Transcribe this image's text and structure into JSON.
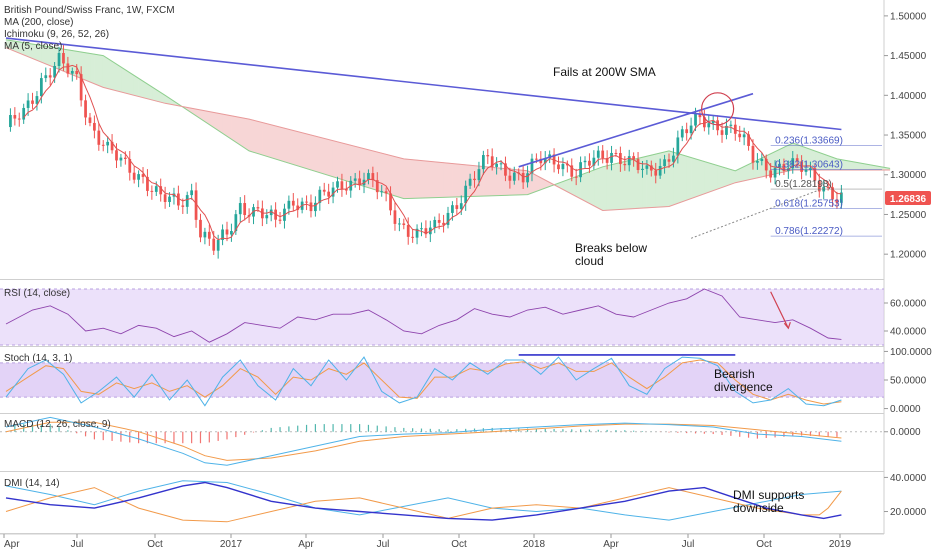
{
  "chart_data": {
    "type": "candlestick",
    "title": "British Pound/Swiss Franc, 1W, FXCM",
    "indicators_top": [
      "MA (200, close)",
      "Ichimoku (9, 26, 52, 26)",
      "MA (5, close)"
    ],
    "x_ticks": [
      "Apr",
      "Jul",
      "Oct",
      "2017",
      "Apr",
      "Jul",
      "Oct",
      "2018",
      "Apr",
      "Jul",
      "Oct",
      "2019"
    ],
    "price_ticks": [
      "1.50000",
      "1.45000",
      "1.40000",
      "1.35000",
      "1.30000",
      "1.25000",
      "1.20000"
    ],
    "price_ylim": [
      1.17,
      1.52
    ],
    "last_price": "1.26836",
    "close_path": [
      [
        0,
        1.355
      ],
      [
        4,
        1.38
      ],
      [
        8,
        1.42
      ],
      [
        12,
        1.44
      ],
      [
        16,
        1.42
      ],
      [
        19,
        1.365
      ],
      [
        23,
        1.33
      ],
      [
        27,
        1.31
      ],
      [
        31,
        1.298
      ],
      [
        35,
        1.27
      ],
      [
        39,
        1.262
      ],
      [
        42,
        1.28
      ],
      [
        44,
        1.23
      ],
      [
        47,
        1.208
      ],
      [
        50,
        1.222
      ],
      [
        53,
        1.262
      ],
      [
        57,
        1.255
      ],
      [
        61,
        1.238
      ],
      [
        65,
        1.27
      ],
      [
        69,
        1.262
      ],
      [
        73,
        1.275
      ],
      [
        77,
        1.292
      ],
      [
        81,
        1.298
      ],
      [
        85,
        1.274
      ],
      [
        89,
        1.24
      ],
      [
        93,
        1.225
      ],
      [
        97,
        1.23
      ],
      [
        101,
        1.26
      ],
      [
        105,
        1.29
      ],
      [
        109,
        1.318
      ],
      [
        113,
        1.308
      ],
      [
        117,
        1.296
      ],
      [
        121,
        1.318
      ],
      [
        125,
        1.32
      ],
      [
        129,
        1.3
      ],
      [
        133,
        1.318
      ],
      [
        137,
        1.33
      ],
      [
        141,
        1.315
      ],
      [
        145,
        1.3
      ],
      [
        149,
        1.318
      ],
      [
        153,
        1.35
      ],
      [
        157,
        1.368
      ],
      [
        161,
        1.365
      ],
      [
        165,
        1.355
      ],
      [
        169,
        1.32
      ],
      [
        173,
        1.31
      ],
      [
        177,
        1.31
      ],
      [
        181,
        1.305
      ],
      [
        185,
        1.288
      ],
      [
        188,
        1.27
      ],
      [
        189,
        1.268
      ]
    ],
    "ma200": [
      [
        0,
        1.472
      ],
      [
        189,
        1.357
      ]
    ],
    "ma5_offset": 0.006,
    "cloud_a": [
      [
        0,
        1.47
      ],
      [
        22,
        1.45
      ],
      [
        36,
        1.4
      ],
      [
        55,
        1.33
      ],
      [
        90,
        1.27
      ],
      [
        118,
        1.275
      ],
      [
        135,
        1.31
      ],
      [
        150,
        1.33
      ],
      [
        165,
        1.305
      ],
      [
        178,
        1.34
      ],
      [
        188,
        1.32
      ],
      [
        200,
        1.308
      ]
    ],
    "cloud_b": [
      [
        0,
        1.46
      ],
      [
        22,
        1.41
      ],
      [
        36,
        1.39
      ],
      [
        55,
        1.37
      ],
      [
        90,
        1.32
      ],
      [
        118,
        1.305
      ],
      [
        135,
        1.255
      ],
      [
        150,
        1.26
      ],
      [
        165,
        1.29
      ],
      [
        178,
        1.306
      ],
      [
        188,
        1.306
      ],
      [
        200,
        1.306
      ]
    ],
    "fib_levels": [
      {
        "label": "0.236(1.33669)",
        "value": 1.33669,
        "color": "#4a5bc4"
      },
      {
        "label": "0.382(1.30643)",
        "value": 1.30643,
        "color": "#4a5bc4"
      },
      {
        "label": "0.5(1.28198)",
        "value": 1.28198,
        "color": "#555555"
      },
      {
        "label": "0.618(1.25753)",
        "value": 1.25753,
        "color": "#4a5bc4"
      },
      {
        "label": "0.786(1.22272)",
        "value": 1.22272,
        "color": "#4a5bc4"
      }
    ],
    "trendline": [
      [
        116,
        1.31
      ],
      [
        169,
        1.402
      ]
    ],
    "circle_center": [
      161,
      1.383
    ],
    "annotations": {
      "fails": "Fails at 200W SMA",
      "breaks_line1": "Breaks below",
      "breaks_line2": "cloud",
      "bearish_line1": "Bearish",
      "bearish_line2": "divergence",
      "dmi_line1": "DMI supports",
      "dmi_line2": "downside"
    },
    "rsi": {
      "label": "RSI (14, close)",
      "ticks": [
        "60.0000",
        "40.0000"
      ],
      "ylim": [
        30,
        75
      ],
      "band": [
        30,
        70
      ],
      "path": [
        [
          0,
          45
        ],
        [
          6,
          55
        ],
        [
          10,
          58
        ],
        [
          14,
          52
        ],
        [
          18,
          40
        ],
        [
          22,
          42
        ],
        [
          26,
          38
        ],
        [
          30,
          44
        ],
        [
          34,
          42
        ],
        [
          38,
          36
        ],
        [
          42,
          40
        ],
        [
          46,
          32
        ],
        [
          50,
          38
        ],
        [
          54,
          46
        ],
        [
          58,
          44
        ],
        [
          62,
          42
        ],
        [
          66,
          50
        ],
        [
          70,
          48
        ],
        [
          74,
          52
        ],
        [
          78,
          52
        ],
        [
          82,
          55
        ],
        [
          86,
          48
        ],
        [
          90,
          40
        ],
        [
          94,
          38
        ],
        [
          98,
          44
        ],
        [
          102,
          48
        ],
        [
          106,
          56
        ],
        [
          110,
          52
        ],
        [
          114,
          50
        ],
        [
          118,
          55
        ],
        [
          122,
          57
        ],
        [
          126,
          52
        ],
        [
          130,
          55
        ],
        [
          134,
          58
        ],
        [
          138,
          52
        ],
        [
          142,
          50
        ],
        [
          146,
          55
        ],
        [
          150,
          60
        ],
        [
          154,
          63
        ],
        [
          158,
          70
        ],
        [
          162,
          65
        ],
        [
          166,
          50
        ],
        [
          170,
          48
        ],
        [
          174,
          46
        ],
        [
          178,
          48
        ],
        [
          182,
          42
        ],
        [
          186,
          35
        ],
        [
          189,
          34
        ]
      ]
    },
    "stoch": {
      "label": "Stoch (14, 3, 1)",
      "ticks": [
        "100.0000",
        "50.0000",
        "0.0000"
      ],
      "ylim": [
        0,
        100
      ],
      "band": [
        20,
        80
      ],
      "k_path": [
        [
          0,
          20
        ],
        [
          5,
          70
        ],
        [
          9,
          85
        ],
        [
          13,
          60
        ],
        [
          17,
          10
        ],
        [
          21,
          30
        ],
        [
          25,
          55
        ],
        [
          29,
          20
        ],
        [
          33,
          60
        ],
        [
          37,
          15
        ],
        [
          41,
          50
        ],
        [
          45,
          5
        ],
        [
          49,
          55
        ],
        [
          53,
          85
        ],
        [
          57,
          40
        ],
        [
          61,
          15
        ],
        [
          65,
          70
        ],
        [
          69,
          40
        ],
        [
          73,
          85
        ],
        [
          77,
          50
        ],
        [
          81,
          90
        ],
        [
          85,
          30
        ],
        [
          89,
          10
        ],
        [
          93,
          20
        ],
        [
          97,
          70
        ],
        [
          101,
          50
        ],
        [
          105,
          80
        ],
        [
          109,
          60
        ],
        [
          113,
          85
        ],
        [
          117,
          85
        ],
        [
          121,
          60
        ],
        [
          125,
          90
        ],
        [
          129,
          50
        ],
        [
          133,
          70
        ],
        [
          137,
          88
        ],
        [
          141,
          40
        ],
        [
          145,
          25
        ],
        [
          149,
          70
        ],
        [
          153,
          90
        ],
        [
          157,
          88
        ],
        [
          161,
          75
        ],
        [
          165,
          30
        ],
        [
          169,
          10
        ],
        [
          173,
          15
        ],
        [
          177,
          35
        ],
        [
          181,
          8
        ],
        [
          185,
          5
        ],
        [
          189,
          15
        ]
      ],
      "d_path": [
        [
          0,
          30
        ],
        [
          5,
          55
        ],
        [
          9,
          75
        ],
        [
          13,
          70
        ],
        [
          17,
          30
        ],
        [
          21,
          25
        ],
        [
          25,
          45
        ],
        [
          29,
          35
        ],
        [
          33,
          45
        ],
        [
          37,
          30
        ],
        [
          41,
          40
        ],
        [
          45,
          20
        ],
        [
          49,
          40
        ],
        [
          53,
          70
        ],
        [
          57,
          55
        ],
        [
          61,
          25
        ],
        [
          65,
          55
        ],
        [
          69,
          50
        ],
        [
          73,
          70
        ],
        [
          77,
          60
        ],
        [
          81,
          80
        ],
        [
          85,
          50
        ],
        [
          89,
          20
        ],
        [
          93,
          18
        ],
        [
          97,
          55
        ],
        [
          101,
          55
        ],
        [
          105,
          70
        ],
        [
          109,
          65
        ],
        [
          113,
          78
        ],
        [
          117,
          82
        ],
        [
          121,
          70
        ],
        [
          125,
          80
        ],
        [
          129,
          65
        ],
        [
          133,
          65
        ],
        [
          137,
          80
        ],
        [
          141,
          55
        ],
        [
          145,
          35
        ],
        [
          149,
          55
        ],
        [
          153,
          80
        ],
        [
          157,
          85
        ],
        [
          161,
          80
        ],
        [
          165,
          50
        ],
        [
          169,
          25
        ],
        [
          173,
          15
        ],
        [
          177,
          25
        ],
        [
          181,
          15
        ],
        [
          185,
          8
        ],
        [
          189,
          12
        ]
      ],
      "hline": [
        [
          116,
          94
        ],
        [
          165,
          94
        ]
      ]
    },
    "macd": {
      "label": "MACD (12, 26, close, 9)",
      "ticks": [
        "0.0000"
      ],
      "ylim": [
        -0.08,
        0.035
      ],
      "macd_path": [
        [
          0,
          0.01
        ],
        [
          10,
          0.03
        ],
        [
          20,
          0.01
        ],
        [
          30,
          -0.015
        ],
        [
          40,
          -0.045
        ],
        [
          45,
          -0.065
        ],
        [
          50,
          -0.07
        ],
        [
          60,
          -0.05
        ],
        [
          70,
          -0.03
        ],
        [
          80,
          -0.01
        ],
        [
          90,
          -0.005
        ],
        [
          100,
          -0.002
        ],
        [
          110,
          0.005
        ],
        [
          120,
          0.01
        ],
        [
          130,
          0.015
        ],
        [
          140,
          0.018
        ],
        [
          150,
          0.015
        ],
        [
          160,
          0.01
        ],
        [
          170,
          -0.005
        ],
        [
          180,
          -0.01
        ],
        [
          189,
          -0.02
        ]
      ],
      "signal_path": [
        [
          0,
          0.0
        ],
        [
          10,
          0.02
        ],
        [
          20,
          0.02
        ],
        [
          30,
          0.0
        ],
        [
          40,
          -0.03
        ],
        [
          45,
          -0.05
        ],
        [
          50,
          -0.06
        ],
        [
          60,
          -0.055
        ],
        [
          70,
          -0.04
        ],
        [
          80,
          -0.02
        ],
        [
          90,
          -0.01
        ],
        [
          100,
          -0.005
        ],
        [
          110,
          0.0
        ],
        [
          120,
          0.006
        ],
        [
          130,
          0.012
        ],
        [
          140,
          0.016
        ],
        [
          150,
          0.016
        ],
        [
          160,
          0.013
        ],
        [
          170,
          0.004
        ],
        [
          180,
          -0.005
        ],
        [
          189,
          -0.013
        ]
      ]
    },
    "dmi": {
      "label": "DMI (14, 14)",
      "ticks": [
        "40.0000",
        "20.0000"
      ],
      "ylim": [
        8,
        42
      ],
      "plus_path": [
        [
          0,
          20
        ],
        [
          10,
          28
        ],
        [
          20,
          34
        ],
        [
          30,
          22
        ],
        [
          40,
          15
        ],
        [
          50,
          14
        ],
        [
          60,
          20
        ],
        [
          70,
          26
        ],
        [
          80,
          28
        ],
        [
          90,
          22
        ],
        [
          100,
          16
        ],
        [
          110,
          22
        ],
        [
          120,
          24
        ],
        [
          130,
          22
        ],
        [
          140,
          28
        ],
        [
          150,
          34
        ],
        [
          160,
          28
        ],
        [
          170,
          22
        ],
        [
          180,
          18
        ],
        [
          184,
          18
        ],
        [
          186,
          22
        ],
        [
          189,
          32
        ]
      ],
      "minus_path": [
        [
          0,
          35
        ],
        [
          10,
          30
        ],
        [
          20,
          24
        ],
        [
          30,
          32
        ],
        [
          40,
          38
        ],
        [
          50,
          37
        ],
        [
          60,
          30
        ],
        [
          70,
          22
        ],
        [
          80,
          18
        ],
        [
          90,
          23
        ],
        [
          100,
          28
        ],
        [
          110,
          22
        ],
        [
          120,
          20
        ],
        [
          130,
          22
        ],
        [
          140,
          18
        ],
        [
          150,
          15
        ],
        [
          160,
          20
        ],
        [
          170,
          25
        ],
        [
          180,
          30
        ],
        [
          189,
          32
        ]
      ],
      "adx_path": [
        [
          0,
          28
        ],
        [
          10,
          24
        ],
        [
          20,
          22
        ],
        [
          30,
          28
        ],
        [
          40,
          35
        ],
        [
          45,
          37
        ],
        [
          50,
          34
        ],
        [
          60,
          26
        ],
        [
          70,
          22
        ],
        [
          80,
          20
        ],
        [
          90,
          18
        ],
        [
          100,
          16
        ],
        [
          110,
          15
        ],
        [
          120,
          18
        ],
        [
          130,
          22
        ],
        [
          140,
          26
        ],
        [
          150,
          32
        ],
        [
          158,
          34
        ],
        [
          165,
          28
        ],
        [
          172,
          22
        ],
        [
          180,
          18
        ],
        [
          185,
          16
        ],
        [
          189,
          18
        ]
      ]
    },
    "colors": {
      "up": "#26a69a",
      "down": "#ef5350",
      "ma200": "#5b5bd6",
      "ma5": "#e05050",
      "trend": "#5b5bd6",
      "cloud_green": "#d7eed7",
      "cloud_red": "#f7d6d6",
      "band": "#dcc8f5",
      "macd": "#4fb3e8",
      "signal": "#f29a4a",
      "dmi_plus": "#f29a4a",
      "dmi_minus": "#4fb3e8",
      "adx": "#3333cc",
      "last_price_bg": "#ef5350"
    }
  }
}
